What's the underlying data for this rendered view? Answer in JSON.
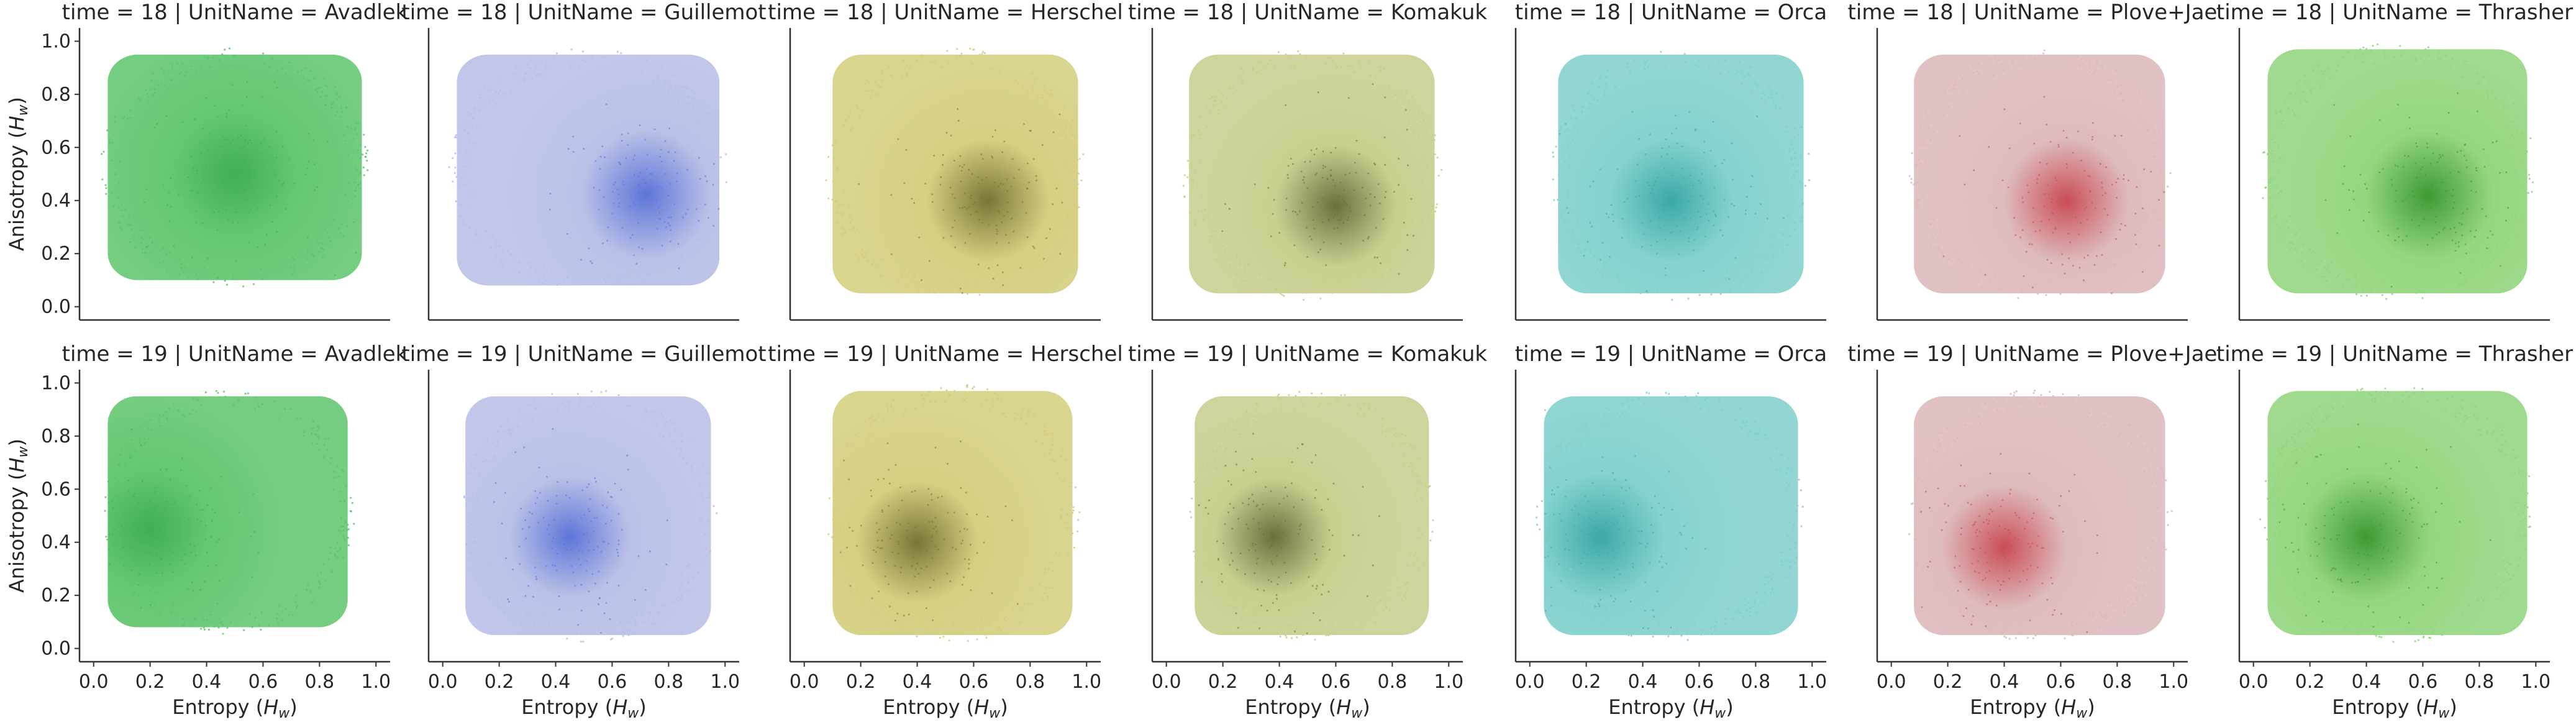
{
  "chart_data": {
    "type": "scatter",
    "facets": {
      "row_variable": "time",
      "column_variable": "UnitName",
      "rows": [
        "18",
        "19"
      ],
      "columns": [
        "Avadlek",
        "Guillemot",
        "Herschel",
        "Komakuk",
        "Orca",
        "Plove+Jae",
        "Thrasher"
      ]
    },
    "xlabel_prefix": "Entropy (",
    "xlabel_symbol": "H",
    "xlabel_sub": "w",
    "xlabel_suffix": ")",
    "ylabel_prefix": "Anisotropy (",
    "ylabel_symbol": "H",
    "ylabel_sub": "w",
    "ylabel_suffix": ")",
    "xlim": [
      -0.05,
      1.05
    ],
    "ylim": [
      -0.05,
      1.05
    ],
    "xticks": [
      "0.0",
      "0.2",
      "0.4",
      "0.6",
      "0.8",
      "1.0"
    ],
    "yticks": [
      "0.0",
      "0.2",
      "0.4",
      "0.6",
      "0.8",
      "1.0"
    ],
    "sharex": true,
    "sharey": true,
    "grid": false,
    "point_size": "very small, dense point cloud with darker high-density core",
    "panels": [
      {
        "title": "time = 18 | UnitName = Avadlek",
        "light_color": "#5cc46a",
        "dense_color": "#3fae52",
        "x_range": [
          0.05,
          0.95
        ],
        "y_range": [
          0.1,
          0.95
        ],
        "density_center": [
          0.5,
          0.5
        ]
      },
      {
        "title": "time = 18 | UnitName = Guillemot",
        "light_color": "#b7bde6",
        "dense_color": "#5d75d8",
        "x_range": [
          0.05,
          0.98
        ],
        "y_range": [
          0.08,
          0.95
        ],
        "density_center": [
          0.72,
          0.42
        ]
      },
      {
        "title": "time = 18 | UnitName = Herschel",
        "light_color": "#d2cc7a",
        "dense_color": "#7a7536",
        "x_range": [
          0.1,
          0.97
        ],
        "y_range": [
          0.05,
          0.95
        ],
        "density_center": [
          0.65,
          0.4
        ]
      },
      {
        "title": "time = 18 | UnitName = Komakuk",
        "light_color": "#c7cc8a",
        "dense_color": "#6c6f3c",
        "x_range": [
          0.08,
          0.95
        ],
        "y_range": [
          0.05,
          0.95
        ],
        "density_center": [
          0.6,
          0.38
        ]
      },
      {
        "title": "time = 18 | UnitName = Orca",
        "light_color": "#7ecfcb",
        "dense_color": "#3aa9a7",
        "x_range": [
          0.1,
          0.97
        ],
        "y_range": [
          0.05,
          0.95
        ],
        "density_center": [
          0.5,
          0.4
        ]
      },
      {
        "title": "time = 18 | UnitName = Plove+Jae",
        "light_color": "#dcb7ba",
        "dense_color": "#c94d55",
        "x_range": [
          0.08,
          0.97
        ],
        "y_range": [
          0.05,
          0.95
        ],
        "density_center": [
          0.62,
          0.4
        ]
      },
      {
        "title": "time = 18 | UnitName = Thrasher",
        "light_color": "#8fd47a",
        "dense_color": "#3e9a35",
        "x_range": [
          0.05,
          0.97
        ],
        "y_range": [
          0.05,
          0.97
        ],
        "density_center": [
          0.62,
          0.42
        ]
      },
      {
        "title": "time = 19 | UnitName = Avadlek",
        "light_color": "#5cc46a",
        "dense_color": "#3fae52",
        "x_range": [
          0.05,
          0.9
        ],
        "y_range": [
          0.08,
          0.95
        ],
        "density_center": [
          0.2,
          0.45
        ]
      },
      {
        "title": "time = 19 | UnitName = Guillemot",
        "light_color": "#b7bde6",
        "dense_color": "#5d75d8",
        "x_range": [
          0.08,
          0.95
        ],
        "y_range": [
          0.05,
          0.95
        ],
        "density_center": [
          0.45,
          0.42
        ]
      },
      {
        "title": "time = 19 | UnitName = Herschel",
        "light_color": "#d2cc7a",
        "dense_color": "#7a7536",
        "x_range": [
          0.1,
          0.95
        ],
        "y_range": [
          0.05,
          0.97
        ],
        "density_center": [
          0.4,
          0.4
        ]
      },
      {
        "title": "time = 19 | UnitName = Komakuk",
        "light_color": "#c7cc8a",
        "dense_color": "#6c6f3c",
        "x_range": [
          0.1,
          0.93
        ],
        "y_range": [
          0.05,
          0.95
        ],
        "density_center": [
          0.38,
          0.42
        ]
      },
      {
        "title": "time = 19 | UnitName = Orca",
        "light_color": "#7ecfcb",
        "dense_color": "#3aa9a7",
        "x_range": [
          0.05,
          0.95
        ],
        "y_range": [
          0.05,
          0.95
        ],
        "density_center": [
          0.25,
          0.42
        ]
      },
      {
        "title": "time = 19 | UnitName = Plove+Jae",
        "light_color": "#dcb7ba",
        "dense_color": "#c94d55",
        "x_range": [
          0.08,
          0.97
        ],
        "y_range": [
          0.05,
          0.95
        ],
        "density_center": [
          0.4,
          0.38
        ]
      },
      {
        "title": "time = 19 | UnitName = Thrasher",
        "light_color": "#8fd47a",
        "dense_color": "#3e9a35",
        "x_range": [
          0.05,
          0.97
        ],
        "y_range": [
          0.05,
          0.97
        ],
        "density_center": [
          0.4,
          0.42
        ]
      }
    ]
  }
}
